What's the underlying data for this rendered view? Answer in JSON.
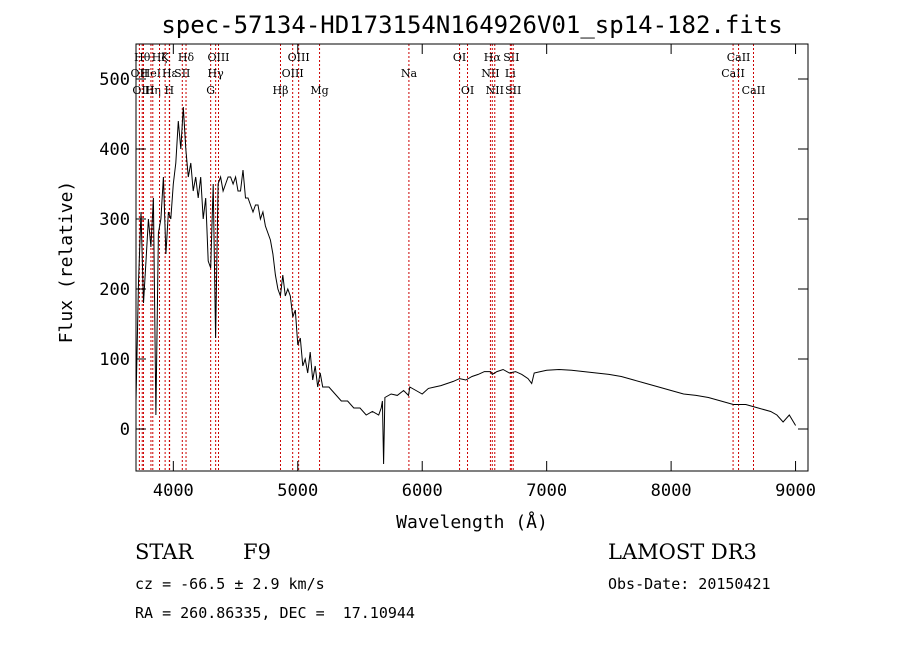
{
  "chart_data": {
    "type": "line",
    "title": "spec-57134-HD173154N164926V01_sp14-182.fits",
    "xlabel": "Wavelength (Å)",
    "ylabel": "Flux (relative)",
    "xlim": [
      3700,
      9100
    ],
    "ylim": [
      -60,
      550
    ],
    "xticks": [
      4000,
      5000,
      6000,
      7000,
      8000,
      9000
    ],
    "yticks": [
      0,
      100,
      200,
      300,
      400,
      500
    ],
    "series": [
      {
        "name": "spectrum",
        "x": [
          3700,
          3720,
          3740,
          3760,
          3780,
          3800,
          3820,
          3840,
          3860,
          3880,
          3900,
          3920,
          3940,
          3960,
          3980,
          4000,
          4020,
          4040,
          4060,
          4080,
          4100,
          4120,
          4140,
          4160,
          4180,
          4200,
          4220,
          4240,
          4260,
          4280,
          4300,
          4320,
          4340,
          4360,
          4380,
          4400,
          4420,
          4440,
          4460,
          4480,
          4500,
          4520,
          4540,
          4560,
          4580,
          4600,
          4620,
          4640,
          4660,
          4680,
          4700,
          4720,
          4740,
          4760,
          4780,
          4800,
          4820,
          4840,
          4860,
          4880,
          4900,
          4920,
          4940,
          4960,
          4980,
          5000,
          5020,
          5040,
          5060,
          5080,
          5100,
          5120,
          5140,
          5160,
          5180,
          5200,
          5250,
          5300,
          5350,
          5400,
          5450,
          5500,
          5550,
          5600,
          5650,
          5670,
          5680,
          5690,
          5700,
          5750,
          5800,
          5850,
          5890,
          5900,
          5950,
          6000,
          6050,
          6100,
          6150,
          6200,
          6250,
          6300,
          6350,
          6400,
          6450,
          6500,
          6550,
          6563,
          6600,
          6650,
          6700,
          6750,
          6800,
          6850,
          6880,
          6900,
          6950,
          7000,
          7100,
          7200,
          7300,
          7400,
          7500,
          7600,
          7700,
          7800,
          7900,
          8000,
          8100,
          8200,
          8300,
          8400,
          8500,
          8600,
          8700,
          8800,
          8850,
          8900,
          8950,
          9000
        ],
        "values": [
          40,
          210,
          310,
          180,
          240,
          300,
          260,
          330,
          20,
          280,
          300,
          360,
          250,
          310,
          300,
          350,
          380,
          440,
          400,
          460,
          400,
          360,
          380,
          340,
          360,
          330,
          360,
          300,
          330,
          240,
          230,
          350,
          130,
          350,
          360,
          340,
          350,
          360,
          360,
          350,
          360,
          340,
          340,
          370,
          330,
          330,
          320,
          310,
          320,
          320,
          300,
          310,
          290,
          280,
          270,
          250,
          220,
          200,
          190,
          220,
          190,
          200,
          190,
          160,
          170,
          120,
          130,
          90,
          100,
          80,
          110,
          70,
          90,
          60,
          80,
          60,
          60,
          50,
          40,
          40,
          30,
          30,
          20,
          25,
          20,
          30,
          40,
          -50,
          45,
          50,
          48,
          55,
          48,
          60,
          55,
          50,
          58,
          60,
          62,
          65,
          68,
          72,
          70,
          75,
          78,
          82,
          82,
          78,
          82,
          85,
          80,
          82,
          78,
          72,
          65,
          80,
          82,
          84,
          85,
          84,
          82,
          80,
          78,
          75,
          70,
          65,
          60,
          55,
          50,
          48,
          45,
          40,
          35,
          35,
          30,
          25,
          20,
          10,
          20,
          5
        ]
      }
    ],
    "lines": [
      {
        "wave": 3727,
        "labels": [
          "OII"
        ],
        "row": 1
      },
      {
        "wave": 3750,
        "labels": [
          "Hθ"
        ],
        "row": 0
      },
      {
        "wave": 3760,
        "labels": [
          "OIII"
        ],
        "row": 2
      },
      {
        "wave": 3820,
        "labels": [
          "HeI"
        ],
        "row": 1
      },
      {
        "wave": 3835,
        "labels": [
          "Hη"
        ],
        "row": 2
      },
      {
        "wave": 3889,
        "labels": [
          "Hζ"
        ],
        "row": 0
      },
      {
        "wave": 3934,
        "labels": [
          "K"
        ],
        "row": 0
      },
      {
        "wave": 3968,
        "labels": [
          "H"
        ],
        "row": 2
      },
      {
        "wave": 3970,
        "labels": [
          "Hε"
        ],
        "row": 1
      },
      {
        "wave": 4072,
        "labels": [
          "SII"
        ],
        "row": 1
      },
      {
        "wave": 4102,
        "labels": [
          "Hδ"
        ],
        "row": 0
      },
      {
        "wave": 4300,
        "labels": [
          "G"
        ],
        "row": 2
      },
      {
        "wave": 4340,
        "labels": [
          "Hγ"
        ],
        "row": 1
      },
      {
        "wave": 4363,
        "labels": [
          "OIII"
        ],
        "row": 0
      },
      {
        "wave": 4861,
        "labels": [
          "Hβ"
        ],
        "row": 2
      },
      {
        "wave": 4959,
        "labels": [
          "OIII"
        ],
        "row": 1
      },
      {
        "wave": 5007,
        "labels": [
          "OIII"
        ],
        "row": 0
      },
      {
        "wave": 5175,
        "labels": [
          "Mg"
        ],
        "row": 2
      },
      {
        "wave": 5893,
        "labels": [
          "Na"
        ],
        "row": 1
      },
      {
        "wave": 6300,
        "labels": [
          "OI"
        ],
        "row": 0
      },
      {
        "wave": 6364,
        "labels": [
          "OI"
        ],
        "row": 2
      },
      {
        "wave": 6548,
        "labels": [
          "NII"
        ],
        "row": 1
      },
      {
        "wave": 6563,
        "labels": [
          "Hα"
        ],
        "row": 0
      },
      {
        "wave": 6583,
        "labels": [
          "NII"
        ],
        "row": 2
      },
      {
        "wave": 6708,
        "labels": [
          "Li"
        ],
        "row": 1
      },
      {
        "wave": 6716,
        "labels": [
          "SII"
        ],
        "row": 0
      },
      {
        "wave": 6731,
        "labels": [
          "SII"
        ],
        "row": 2
      },
      {
        "wave": 8498,
        "labels": [
          "CaII"
        ],
        "row": 1
      },
      {
        "wave": 8542,
        "labels": [
          "CaII"
        ],
        "row": 0
      },
      {
        "wave": 8662,
        "labels": [
          "CaII"
        ],
        "row": 2
      }
    ]
  },
  "info": {
    "class_label": "STAR",
    "subclass_label": "F9",
    "survey_label": "LAMOST DR3",
    "cz": "cz = -66.5 ± 2.9 km/s",
    "obs_date": "Obs-Date: 20150421",
    "coords": "RA = 260.86335, DEC =  17.10944"
  },
  "colors": {
    "line_marker": "#cc0000",
    "spectrum": "#000000",
    "axis": "#000000"
  }
}
